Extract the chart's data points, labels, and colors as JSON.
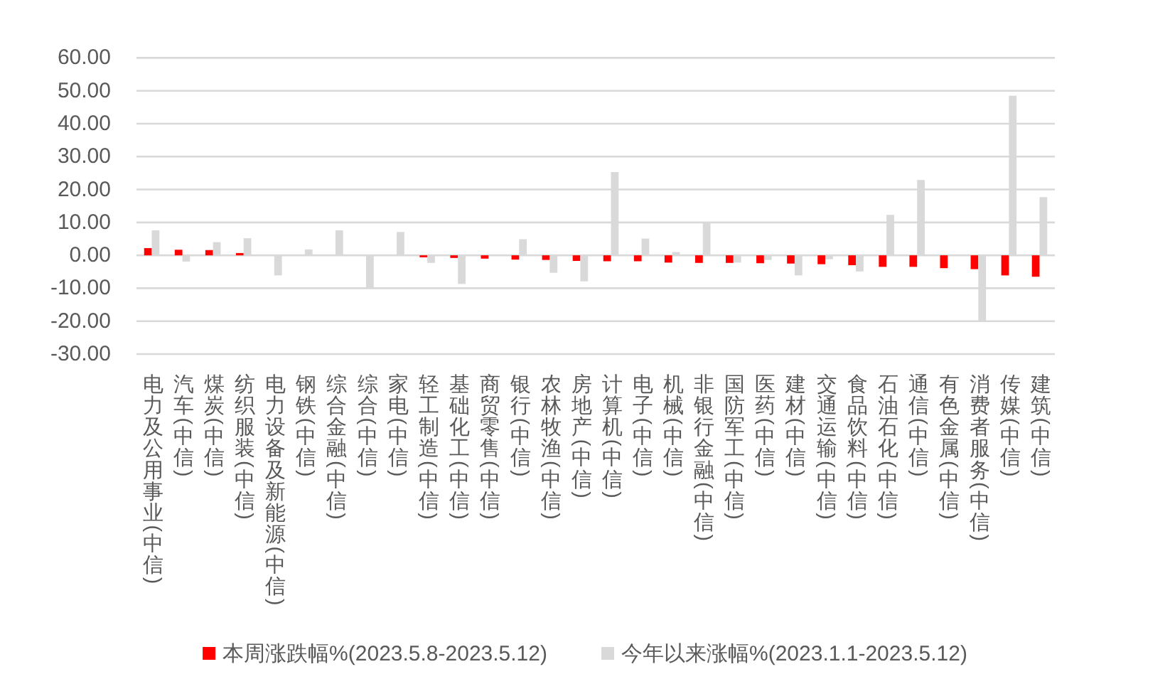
{
  "chart_data": {
    "type": "bar",
    "categories": [
      "电力及公用事业(中信)",
      "汽车(中信)",
      "煤炭(中信)",
      "纺织服装(中信)",
      "电力设备及新能源(中信)",
      "钢铁(中信)",
      "综合金融(中信)",
      "综合(中信)",
      "家电(中信)",
      "轻工制造(中信)",
      "基础化工(中信)",
      "商贸零售(中信)",
      "银行(中信)",
      "农林牧渔(中信)",
      "房地产(中信)",
      "计算机(中信)",
      "电子(中信)",
      "机械(中信)",
      "非银行金融(中信)",
      "国防军工(中信)",
      "医药(中信)",
      "建材(中信)",
      "交通运输(中信)",
      "食品饮料(中信)",
      "石油石化(中信)",
      "通信(中信)",
      "有色金属(中信)",
      "消费者服务(中信)",
      "传媒(中信)",
      "建筑(中信)"
    ],
    "series": [
      {
        "name": "本周涨跌幅%(2023.5.8-2023.5.12)",
        "color": "#ff0000",
        "values": [
          2.2,
          1.7,
          1.6,
          0.7,
          0.0,
          0.0,
          0.0,
          0.0,
          0.0,
          -0.6,
          -0.8,
          -1.0,
          -1.3,
          -1.4,
          -1.7,
          -1.8,
          -1.8,
          -2.2,
          -2.3,
          -2.3,
          -2.4,
          -2.5,
          -2.7,
          -3.0,
          -3.5,
          -3.5,
          -3.9,
          -4.2,
          -6.1,
          -6.5
        ]
      },
      {
        "name": "今年以来涨幅%(2023.1.1-2023.5.12)",
        "color": "#d9d9d9",
        "values": [
          7.6,
          -1.9,
          4.0,
          5.2,
          -6.1,
          1.8,
          7.6,
          -10.1,
          7.1,
          -2.3,
          -8.7,
          0.0,
          4.9,
          -5.3,
          -7.9,
          25.3,
          5.1,
          1.0,
          9.8,
          -2.2,
          -1.4,
          -6.1,
          -1.2,
          -4.9,
          12.3,
          22.9,
          0.0,
          -20.1,
          48.5,
          17.7
        ]
      }
    ],
    "ylim": [
      -30,
      60
    ],
    "yticks": [
      {
        "value": -30,
        "label": "-30.00"
      },
      {
        "value": -20,
        "label": "-20.00"
      },
      {
        "value": -10,
        "label": "-10.00"
      },
      {
        "value": 0,
        "label": "0.00"
      },
      {
        "value": 10,
        "label": "10.00"
      },
      {
        "value": 20,
        "label": "20.00"
      },
      {
        "value": 30,
        "label": "30.00"
      },
      {
        "value": 40,
        "label": "40.00"
      },
      {
        "value": 50,
        "label": "50.00"
      },
      {
        "value": 60,
        "label": "60.00"
      }
    ],
    "grid": "y",
    "legend": "bottom"
  }
}
